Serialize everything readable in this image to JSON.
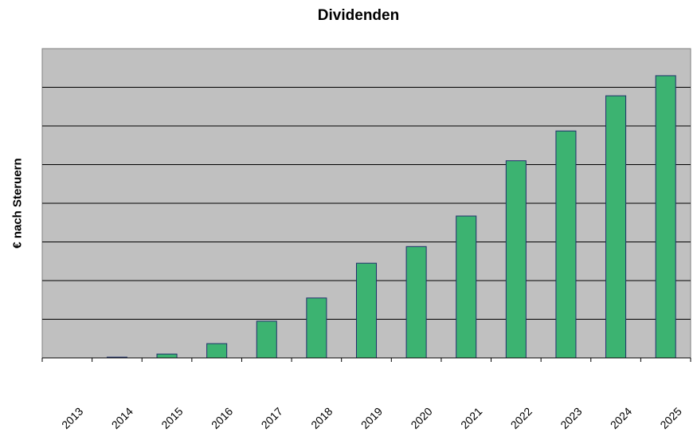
{
  "chart_data": {
    "type": "bar",
    "title": "Dividenden",
    "xlabel": "",
    "ylabel": "€ nach Steruern",
    "categories": [
      "2013",
      "2014",
      "2015",
      "2016",
      "2017",
      "2018",
      "2019",
      "2020",
      "2021",
      "2022",
      "2023",
      "2024",
      "2025"
    ],
    "values": [
      0,
      0.02,
      0.1,
      0.37,
      0.95,
      1.55,
      2.45,
      2.88,
      3.67,
      5.1,
      5.87,
      6.78,
      7.3
    ],
    "ylim": [
      0,
      8
    ],
    "grid": true,
    "legend": "none",
    "colors": {
      "plot_background": "#c0c0c0",
      "bar_fill": "#3cb371",
      "bar_stroke": "#1f2f6b",
      "grid": "#000000"
    }
  }
}
